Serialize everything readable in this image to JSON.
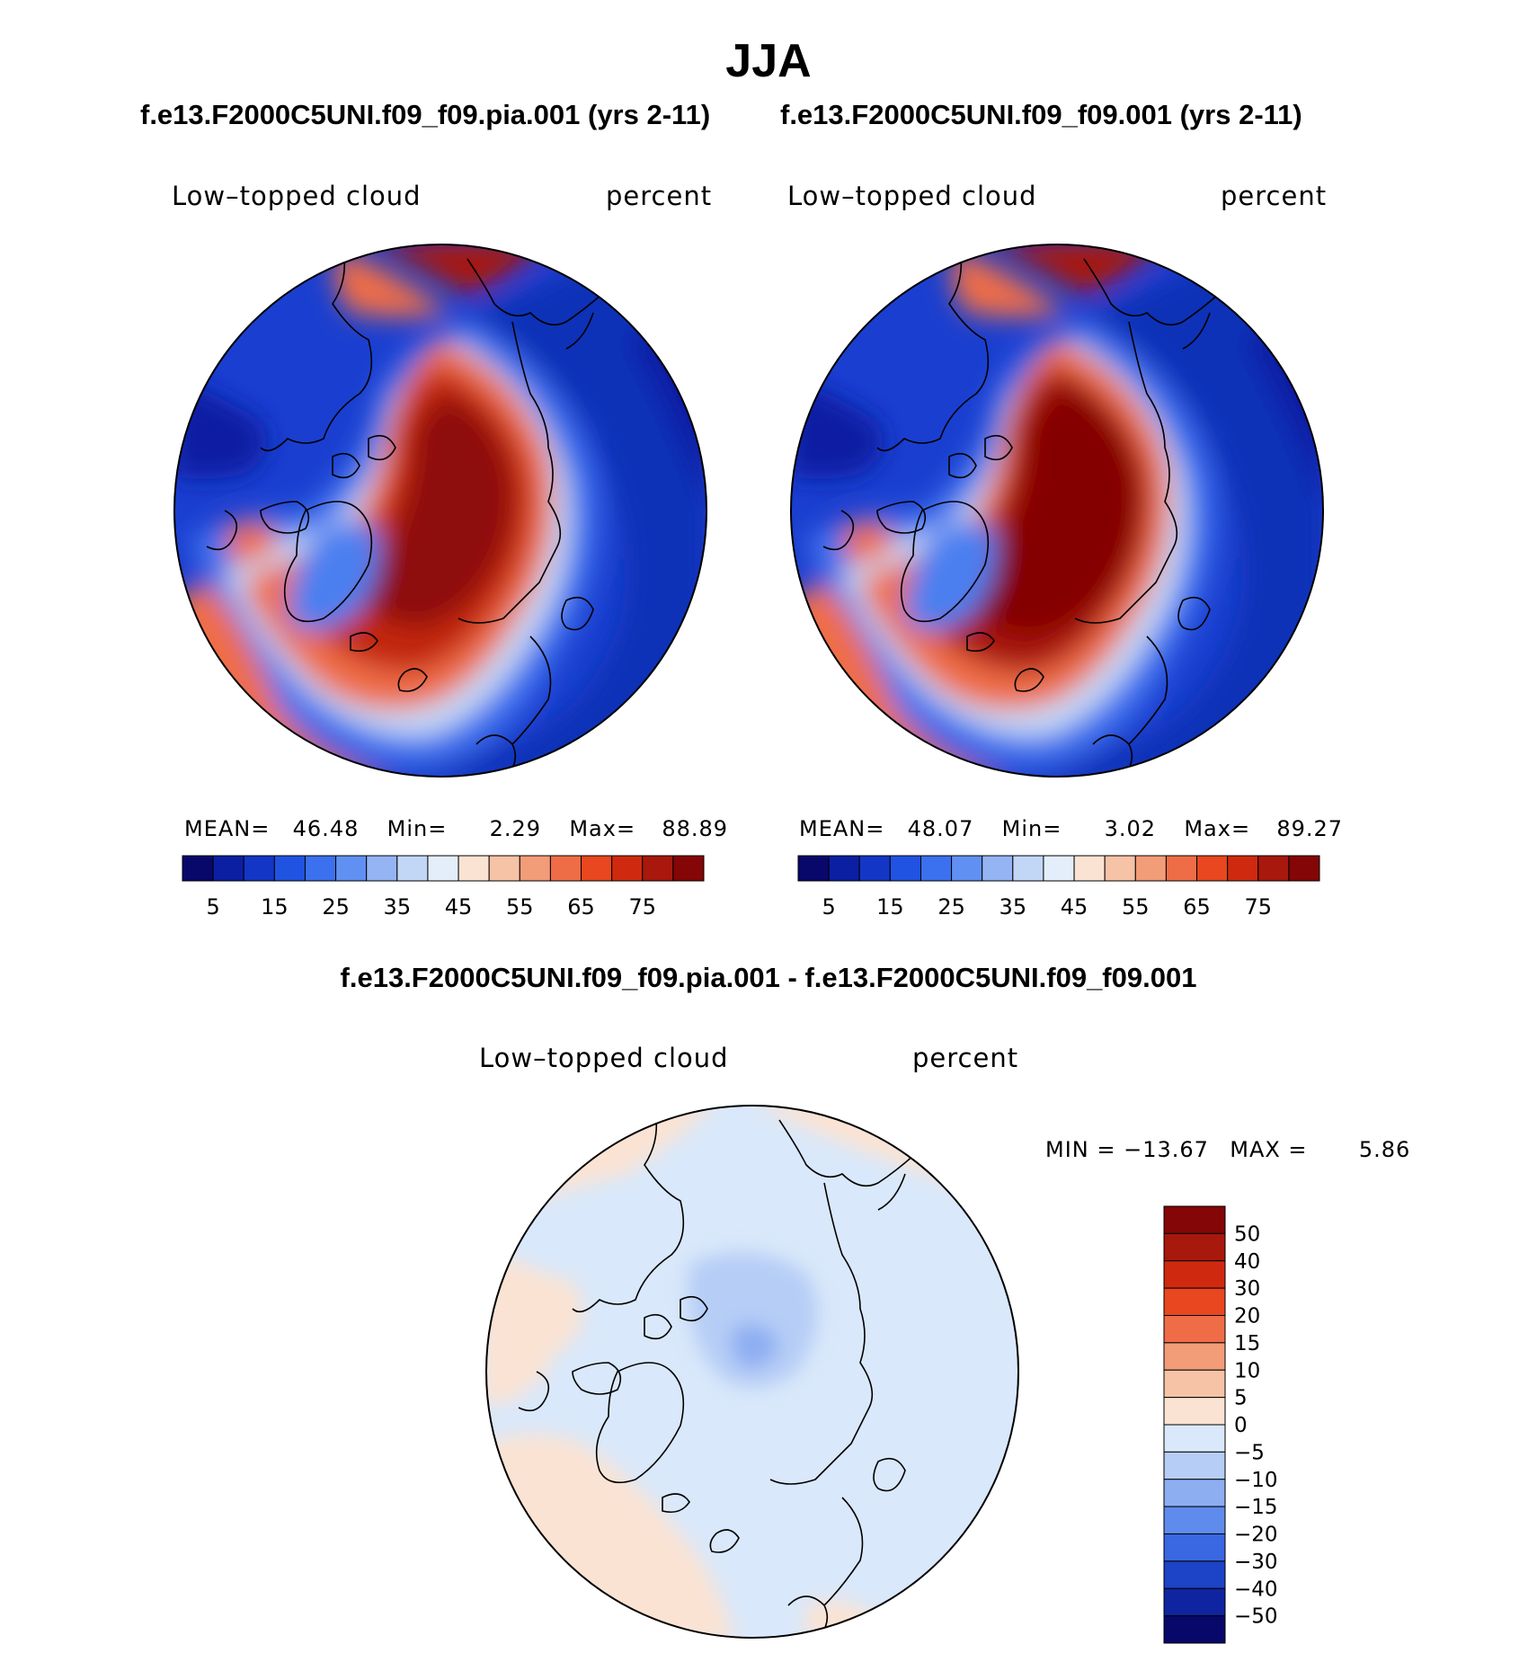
{
  "title": "JJA",
  "panels": [
    {
      "case_title": "f.e13.F2000C5UNI.f09_f09.pia.001 (yrs 2-11)",
      "variable": "Low–topped cloud",
      "units": "percent",
      "mean_label": "MEAN=",
      "mean": "46.48",
      "min_label": "Min=",
      "min": "2.29",
      "max_label": "Max=",
      "max": "88.89"
    },
    {
      "case_title": "f.e13.F2000C5UNI.f09_f09.001 (yrs 2-11)",
      "variable": "Low–topped cloud",
      "units": "percent",
      "mean_label": "MEAN=",
      "mean": "48.07",
      "min_label": "Min=",
      "min": "3.02",
      "max_label": "Max=",
      "max": "89.27"
    }
  ],
  "diff_panel": {
    "title": "f.e13.F2000C5UNI.f09_f09.pia.001 - f.e13.F2000C5UNI.f09_f09.001",
    "variable": "Low–topped cloud",
    "units": "percent",
    "min_label": "MIN =",
    "min": "−13.67",
    "max_label": "MAX =",
    "max": "5.86"
  },
  "chart_data": [
    {
      "type": "heatmap",
      "projection": "north-polar-stereographic",
      "title": "f.e13.F2000C5UNI.f09_f09.pia.001 (yrs 2-11)",
      "variable": "Low-topped cloud",
      "units": "percent",
      "mean": 46.48,
      "min": 2.29,
      "max": 88.89,
      "colorbar": {
        "orientation": "horizontal",
        "levels": [
          5,
          10,
          15,
          20,
          25,
          30,
          35,
          40,
          45,
          50,
          55,
          60,
          65,
          70,
          75
        ],
        "tick_labels": [
          "5",
          "15",
          "25",
          "35",
          "45",
          "55",
          "65",
          "75"
        ],
        "colors": [
          "#08086b",
          "#0b1fa3",
          "#1436c6",
          "#2053e2",
          "#3b70ee",
          "#6090f2",
          "#94b4f4",
          "#c2d6f6",
          "#e4eefa",
          "#fbe3d3",
          "#f7c3a6",
          "#f39c78",
          "#ee6d47",
          "#e8471f",
          "#cf2a0f",
          "#a8180c",
          "#840606"
        ]
      }
    },
    {
      "type": "heatmap",
      "projection": "north-polar-stereographic",
      "title": "f.e13.F2000C5UNI.f09_f09.001 (yrs 2-11)",
      "variable": "Low-topped cloud",
      "units": "percent",
      "mean": 48.07,
      "min": 3.02,
      "max": 89.27,
      "colorbar": {
        "orientation": "horizontal",
        "levels": [
          5,
          10,
          15,
          20,
          25,
          30,
          35,
          40,
          45,
          50,
          55,
          60,
          65,
          70,
          75
        ],
        "tick_labels": [
          "5",
          "15",
          "25",
          "35",
          "45",
          "55",
          "65",
          "75"
        ],
        "colors": [
          "#08086b",
          "#0b1fa3",
          "#1436c6",
          "#2053e2",
          "#3b70ee",
          "#6090f2",
          "#94b4f4",
          "#c2d6f6",
          "#e4eefa",
          "#fbe3d3",
          "#f7c3a6",
          "#f39c78",
          "#ee6d47",
          "#e8471f",
          "#cf2a0f",
          "#a8180c",
          "#840606"
        ]
      }
    },
    {
      "type": "heatmap",
      "projection": "north-polar-stereographic",
      "title": "f.e13.F2000C5UNI.f09_f09.pia.001 - f.e13.F2000C5UNI.f09_f09.001",
      "variable": "Low-topped cloud",
      "units": "percent",
      "min": -13.67,
      "max": 5.86,
      "colorbar": {
        "orientation": "vertical",
        "levels": [
          50,
          40,
          30,
          20,
          15,
          10,
          5,
          0,
          -5,
          -10,
          -15,
          -20,
          -30,
          -40,
          -50
        ],
        "tick_labels": [
          "50",
          "40",
          "30",
          "20",
          "15",
          "10",
          "5",
          "0",
          "−5",
          "−10",
          "−15",
          "−20",
          "−30",
          "−40",
          "−50"
        ],
        "colors": [
          "#840606",
          "#a8180c",
          "#cf2a0f",
          "#e8471f",
          "#ee6d47",
          "#f39c78",
          "#f7c3a6",
          "#fbe3d3",
          "#d9e8fa",
          "#b6cdf6",
          "#8eaef2",
          "#5f8bec",
          "#3a67e2",
          "#1d43c6",
          "#0f24a0",
          "#08086b"
        ]
      }
    }
  ]
}
